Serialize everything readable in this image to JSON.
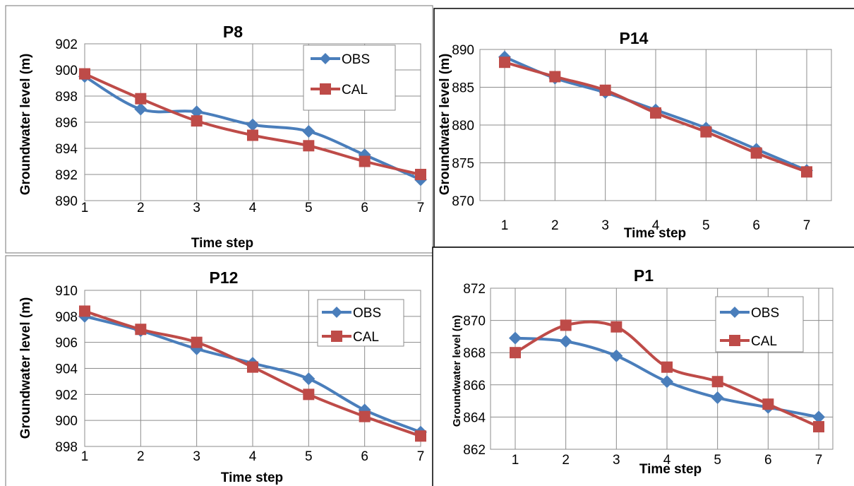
{
  "colors": {
    "obs": "#4a7ebb",
    "cal": "#be4b48"
  },
  "chart_data": [
    {
      "type": "line",
      "title": "P8",
      "xlabel": "Time step",
      "ylabel": "Groundwater level (m)",
      "x": [
        1,
        2,
        3,
        4,
        5,
        6,
        7
      ],
      "ylim": [
        890,
        902
      ],
      "yticks": [
        890,
        892,
        894,
        896,
        898,
        900,
        902
      ],
      "grid": true,
      "legend_position": "top-right",
      "series": [
        {
          "name": "OBS",
          "marker": "diamond",
          "values": [
            899.5,
            897.0,
            896.8,
            895.8,
            895.3,
            893.5,
            891.6
          ]
        },
        {
          "name": "CAL",
          "marker": "square",
          "values": [
            899.7,
            897.8,
            896.1,
            895.0,
            894.2,
            893.0,
            892.0
          ]
        }
      ]
    },
    {
      "type": "line",
      "title": "P14",
      "xlabel": "Time step",
      "ylabel": "Groundwater level (m)",
      "x": [
        1,
        2,
        3,
        4,
        5,
        6,
        7
      ],
      "ylim": [
        870,
        890
      ],
      "yticks": [
        870,
        875,
        880,
        885,
        890
      ],
      "grid": true,
      "legend_position": "none",
      "series": [
        {
          "name": "OBS",
          "marker": "diamond",
          "values": [
            889.0,
            886.2,
            884.3,
            882.0,
            879.6,
            876.8,
            874.0
          ]
        },
        {
          "name": "CAL",
          "marker": "square",
          "values": [
            888.3,
            886.4,
            884.6,
            881.6,
            879.1,
            876.3,
            873.8
          ]
        }
      ]
    },
    {
      "type": "line",
      "title": "P12",
      "xlabel": "Time step",
      "ylabel": "Groundwater level (m)",
      "x": [
        1,
        2,
        3,
        4,
        5,
        6,
        7
      ],
      "ylim": [
        898,
        910
      ],
      "yticks": [
        898,
        900,
        902,
        904,
        906,
        908,
        910
      ],
      "grid": true,
      "legend_position": "top-right",
      "series": [
        {
          "name": "OBS",
          "marker": "diamond",
          "values": [
            908.0,
            906.9,
            905.5,
            904.4,
            903.2,
            900.8,
            899.1
          ]
        },
        {
          "name": "CAL",
          "marker": "square",
          "values": [
            908.4,
            907.0,
            906.0,
            904.1,
            902.0,
            900.3,
            898.8
          ]
        }
      ]
    },
    {
      "type": "line",
      "title": "P1",
      "xlabel": "Time step",
      "ylabel": "Groundwater level (m)",
      "x": [
        1,
        2,
        3,
        4,
        5,
        6,
        7
      ],
      "ylim": [
        862,
        872
      ],
      "yticks": [
        862,
        864,
        866,
        868,
        870,
        872
      ],
      "grid": true,
      "legend_position": "top-right",
      "series": [
        {
          "name": "OBS",
          "marker": "diamond",
          "values": [
            868.9,
            868.7,
            867.8,
            866.2,
            865.2,
            864.6,
            864.0
          ]
        },
        {
          "name": "CAL",
          "marker": "square",
          "values": [
            868.0,
            869.7,
            869.6,
            867.1,
            866.2,
            864.8,
            863.4
          ]
        }
      ]
    }
  ]
}
